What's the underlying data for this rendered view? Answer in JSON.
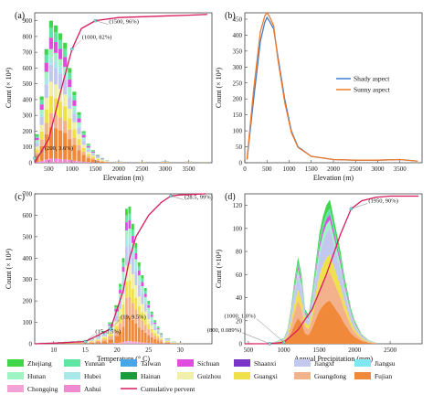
{
  "colors": {
    "Zhejiang": "#3fd64a",
    "Yunnan": "#5ee6a2",
    "Taiwan": "#47a7e6",
    "Sichuan": "#e04be0",
    "Shaanxi": "#7a36c9",
    "Jiangxi": "#c3c8ee",
    "Jiangsu": "#7ee9f0",
    "Hunan": "#9ef5c3",
    "Hubei": "#a8e8e8",
    "Hainan": "#1a9c3c",
    "Guizhou": "#f0f0a8",
    "Guangxi": "#f0e04a",
    "Guangdong": "#f3b28c",
    "Fujian": "#f08a3a",
    "Chongqing": "#f5a3d6",
    "Anhui": "#f08ad0",
    "cumulative": "#d81b5b",
    "shady": "#3b7fd0",
    "sunny": "#f07a2a"
  },
  "legend": {
    "items": [
      "Zhejiang",
      "Yunnan",
      "Taiwan",
      "Sichuan",
      "Shaanxi",
      "Jiangxi",
      "Jiangsu",
      "Hunan",
      "Hubei",
      "Hainan",
      "Guizhou",
      "Guangxi",
      "Guangdong",
      "Fujian",
      "Chongqing",
      "Anhui"
    ],
    "cumulative_label": "Cumulative pervent"
  },
  "chart_data": [
    {
      "panel": "(a)",
      "type": "bar",
      "stacked": true,
      "xlabel": "Elevation (m)",
      "ylabel": "Count (× 10⁴)",
      "xlim": [
        200,
        4000
      ],
      "ylim": [
        0,
        950
      ],
      "xticks": [
        500,
        1000,
        1500,
        2000,
        2500,
        3000,
        3500
      ],
      "yticks": [
        0,
        100,
        200,
        300,
        400,
        500,
        600,
        700,
        800,
        900
      ],
      "x": [
        250,
        350,
        450,
        550,
        650,
        750,
        850,
        950,
        1050,
        1150,
        1250,
        1350,
        1450,
        1550,
        1650,
        1750,
        2000,
        2500,
        3000,
        3500,
        3800
      ],
      "totals": [
        180,
        420,
        720,
        900,
        870,
        820,
        760,
        600,
        450,
        320,
        200,
        120,
        80,
        50,
        30,
        15,
        8,
        6,
        10,
        8,
        5
      ],
      "cumulative": {
        "x": [
          200,
          500,
          800,
          1000,
          1200,
          1500,
          2000,
          2500,
          3000,
          3500,
          3900
        ],
        "y": [
          0,
          150,
          500,
          720,
          850,
          900,
          920,
          925,
          930,
          935,
          940
        ]
      },
      "annotations": [
        {
          "text": "(1500, 96%)",
          "x": 1500,
          "y": 900
        },
        {
          "text": "(1000, 82%)",
          "x": 1000,
          "y": 720
        },
        {
          "text": "(200, 3.6%)",
          "x": 200,
          "y": 30
        }
      ]
    },
    {
      "panel": "(b)",
      "type": "line",
      "xlabel": "Elevation (m)",
      "ylabel": "Count (× 10⁴)",
      "xlim": [
        0,
        4000
      ],
      "ylim": [
        0,
        470
      ],
      "xticks": [
        0,
        500,
        1000,
        1500,
        2000,
        2500,
        3000,
        3500
      ],
      "yticks": [
        0,
        50,
        100,
        150,
        200,
        250,
        300,
        350,
        400,
        450
      ],
      "series": [
        {
          "name": "Shady aspect",
          "x": [
            50,
            200,
            350,
            450,
            500,
            550,
            650,
            750,
            900,
            1050,
            1200,
            1500,
            2000,
            2500,
            3000,
            3500,
            3900
          ],
          "y": [
            10,
            200,
            380,
            440,
            455,
            445,
            420,
            330,
            200,
            100,
            50,
            20,
            10,
            8,
            8,
            10,
            5
          ]
        },
        {
          "name": "Sunny aspect",
          "x": [
            50,
            200,
            350,
            450,
            500,
            550,
            650,
            750,
            900,
            1050,
            1200,
            1500,
            2000,
            2500,
            3000,
            3500,
            3900
          ],
          "y": [
            12,
            230,
            410,
            460,
            470,
            460,
            430,
            320,
            190,
            95,
            48,
            20,
            10,
            8,
            8,
            10,
            5
          ]
        }
      ]
    },
    {
      "panel": "(c)",
      "type": "bar",
      "stacked": true,
      "xlabel": "Temperature (° C)",
      "ylabel": "Count (× 10⁴)",
      "xlim": [
        7,
        35
      ],
      "ylim": [
        0,
        700
      ],
      "xticks": [
        10,
        15,
        20,
        25,
        30
      ],
      "yticks": [
        0,
        100,
        200,
        300,
        400,
        500,
        600,
        700
      ],
      "x": [
        8,
        9,
        10,
        11,
        12,
        13,
        14,
        15,
        16,
        17,
        18,
        19,
        20,
        20.5,
        21,
        21.5,
        22,
        22.5,
        23,
        23.5,
        24,
        24.5,
        25,
        25.5,
        26,
        26.5,
        27,
        28,
        29,
        30
      ],
      "totals": [
        5,
        5,
        6,
        8,
        10,
        12,
        14,
        18,
        25,
        40,
        60,
        100,
        180,
        280,
        400,
        630,
        640,
        560,
        470,
        380,
        320,
        260,
        200,
        150,
        110,
        80,
        50,
        25,
        10,
        5
      ],
      "cumulative": {
        "x": [
          7,
          10,
          15,
          19,
          21,
          22,
          23,
          25,
          27,
          28.5,
          30,
          34
        ],
        "y": [
          0,
          3,
          10,
          70,
          250,
          400,
          500,
          600,
          660,
          690,
          695,
          700
        ]
      },
      "annotations": [
        {
          "text": "(28.5, 99%)",
          "x": 28.5,
          "y": 690
        },
        {
          "text": "(19, 9.5%)",
          "x": 19,
          "y": 70
        },
        {
          "text": "(15, 1.5%)",
          "x": 15,
          "y": 10
        }
      ]
    },
    {
      "panel": "(d)",
      "type": "area",
      "stacked": true,
      "xlabel": "Annual Precipitation (mm)",
      "ylabel": "Count (×10⁴)",
      "xlim": [
        450,
        2950
      ],
      "ylim": [
        0,
        130
      ],
      "xticks": [
        500,
        1000,
        1500,
        2000,
        2500
      ],
      "yticks": [
        0,
        20,
        40,
        60,
        80,
        100,
        120
      ],
      "x": [
        800,
        900,
        1000,
        1050,
        1100,
        1150,
        1200,
        1250,
        1300,
        1350,
        1400,
        1450,
        1500,
        1550,
        1600,
        1650,
        1700,
        1750,
        1800,
        1850,
        1900,
        1950,
        2000,
        2100,
        2200,
        2300
      ],
      "totals": [
        1,
        2,
        5,
        12,
        30,
        55,
        75,
        60,
        30,
        25,
        45,
        70,
        95,
        110,
        120,
        125,
        110,
        95,
        80,
        60,
        45,
        30,
        20,
        8,
        3,
        1
      ],
      "cumulative": {
        "x": [
          450,
          800,
          1000,
          1200,
          1400,
          1600,
          1800,
          1950,
          2100,
          2300,
          2500,
          2900
        ],
        "y": [
          0,
          0.1,
          1.3,
          12,
          30,
          60,
          95,
          117,
          124,
          127,
          128,
          128
        ]
      },
      "annotations": [
        {
          "text": "(1950, 90%)",
          "x": 1950,
          "y": 117
        },
        {
          "text": "(1000, 1.0%)",
          "x": 1000,
          "y": 1.3
        },
        {
          "text": "(800, 0.089%)",
          "x": 800,
          "y": 0.1
        }
      ]
    }
  ]
}
